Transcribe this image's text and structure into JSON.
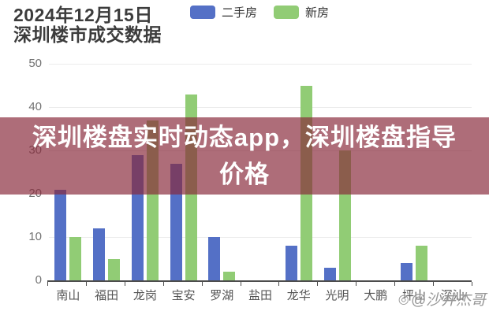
{
  "header": {
    "title_line1": "2024年12月15日",
    "title_line2": "深圳楼市成交数据"
  },
  "legend": [
    {
      "label": "二手房",
      "color": "#5470C6"
    },
    {
      "label": "新房",
      "color": "#91CC75"
    }
  ],
  "overlay_banner": {
    "text_line1": "深圳楼盘实时动态app，深圳楼盘指导",
    "text_line2": "价格",
    "background_color": "#87283A",
    "text_color": "#FFFFFF"
  },
  "watermark": {
    "text": "@沙井杰哥"
  },
  "chart_data": {
    "type": "bar",
    "title": "2024年12月15日 深圳楼市成交数据",
    "categories": [
      "南山",
      "福田",
      "龙岗",
      "宝安",
      "罗湖",
      "盐田",
      "龙华",
      "光明",
      "大鹏",
      "坪山",
      "深汕"
    ],
    "series": [
      {
        "name": "二手房",
        "color": "#5470C6",
        "values": [
          21,
          12,
          29,
          27,
          10,
          0,
          8,
          3,
          0,
          4,
          0
        ]
      },
      {
        "name": "新房",
        "color": "#91CC75",
        "values": [
          10,
          5,
          37,
          43,
          2,
          0,
          45,
          30,
          0,
          8,
          0
        ]
      }
    ],
    "xlabel": "",
    "ylabel": "",
    "ylim": [
      0,
      50
    ],
    "yticks": [
      0,
      10,
      20,
      30,
      40,
      50
    ],
    "grid": true,
    "legend_position": "top"
  }
}
